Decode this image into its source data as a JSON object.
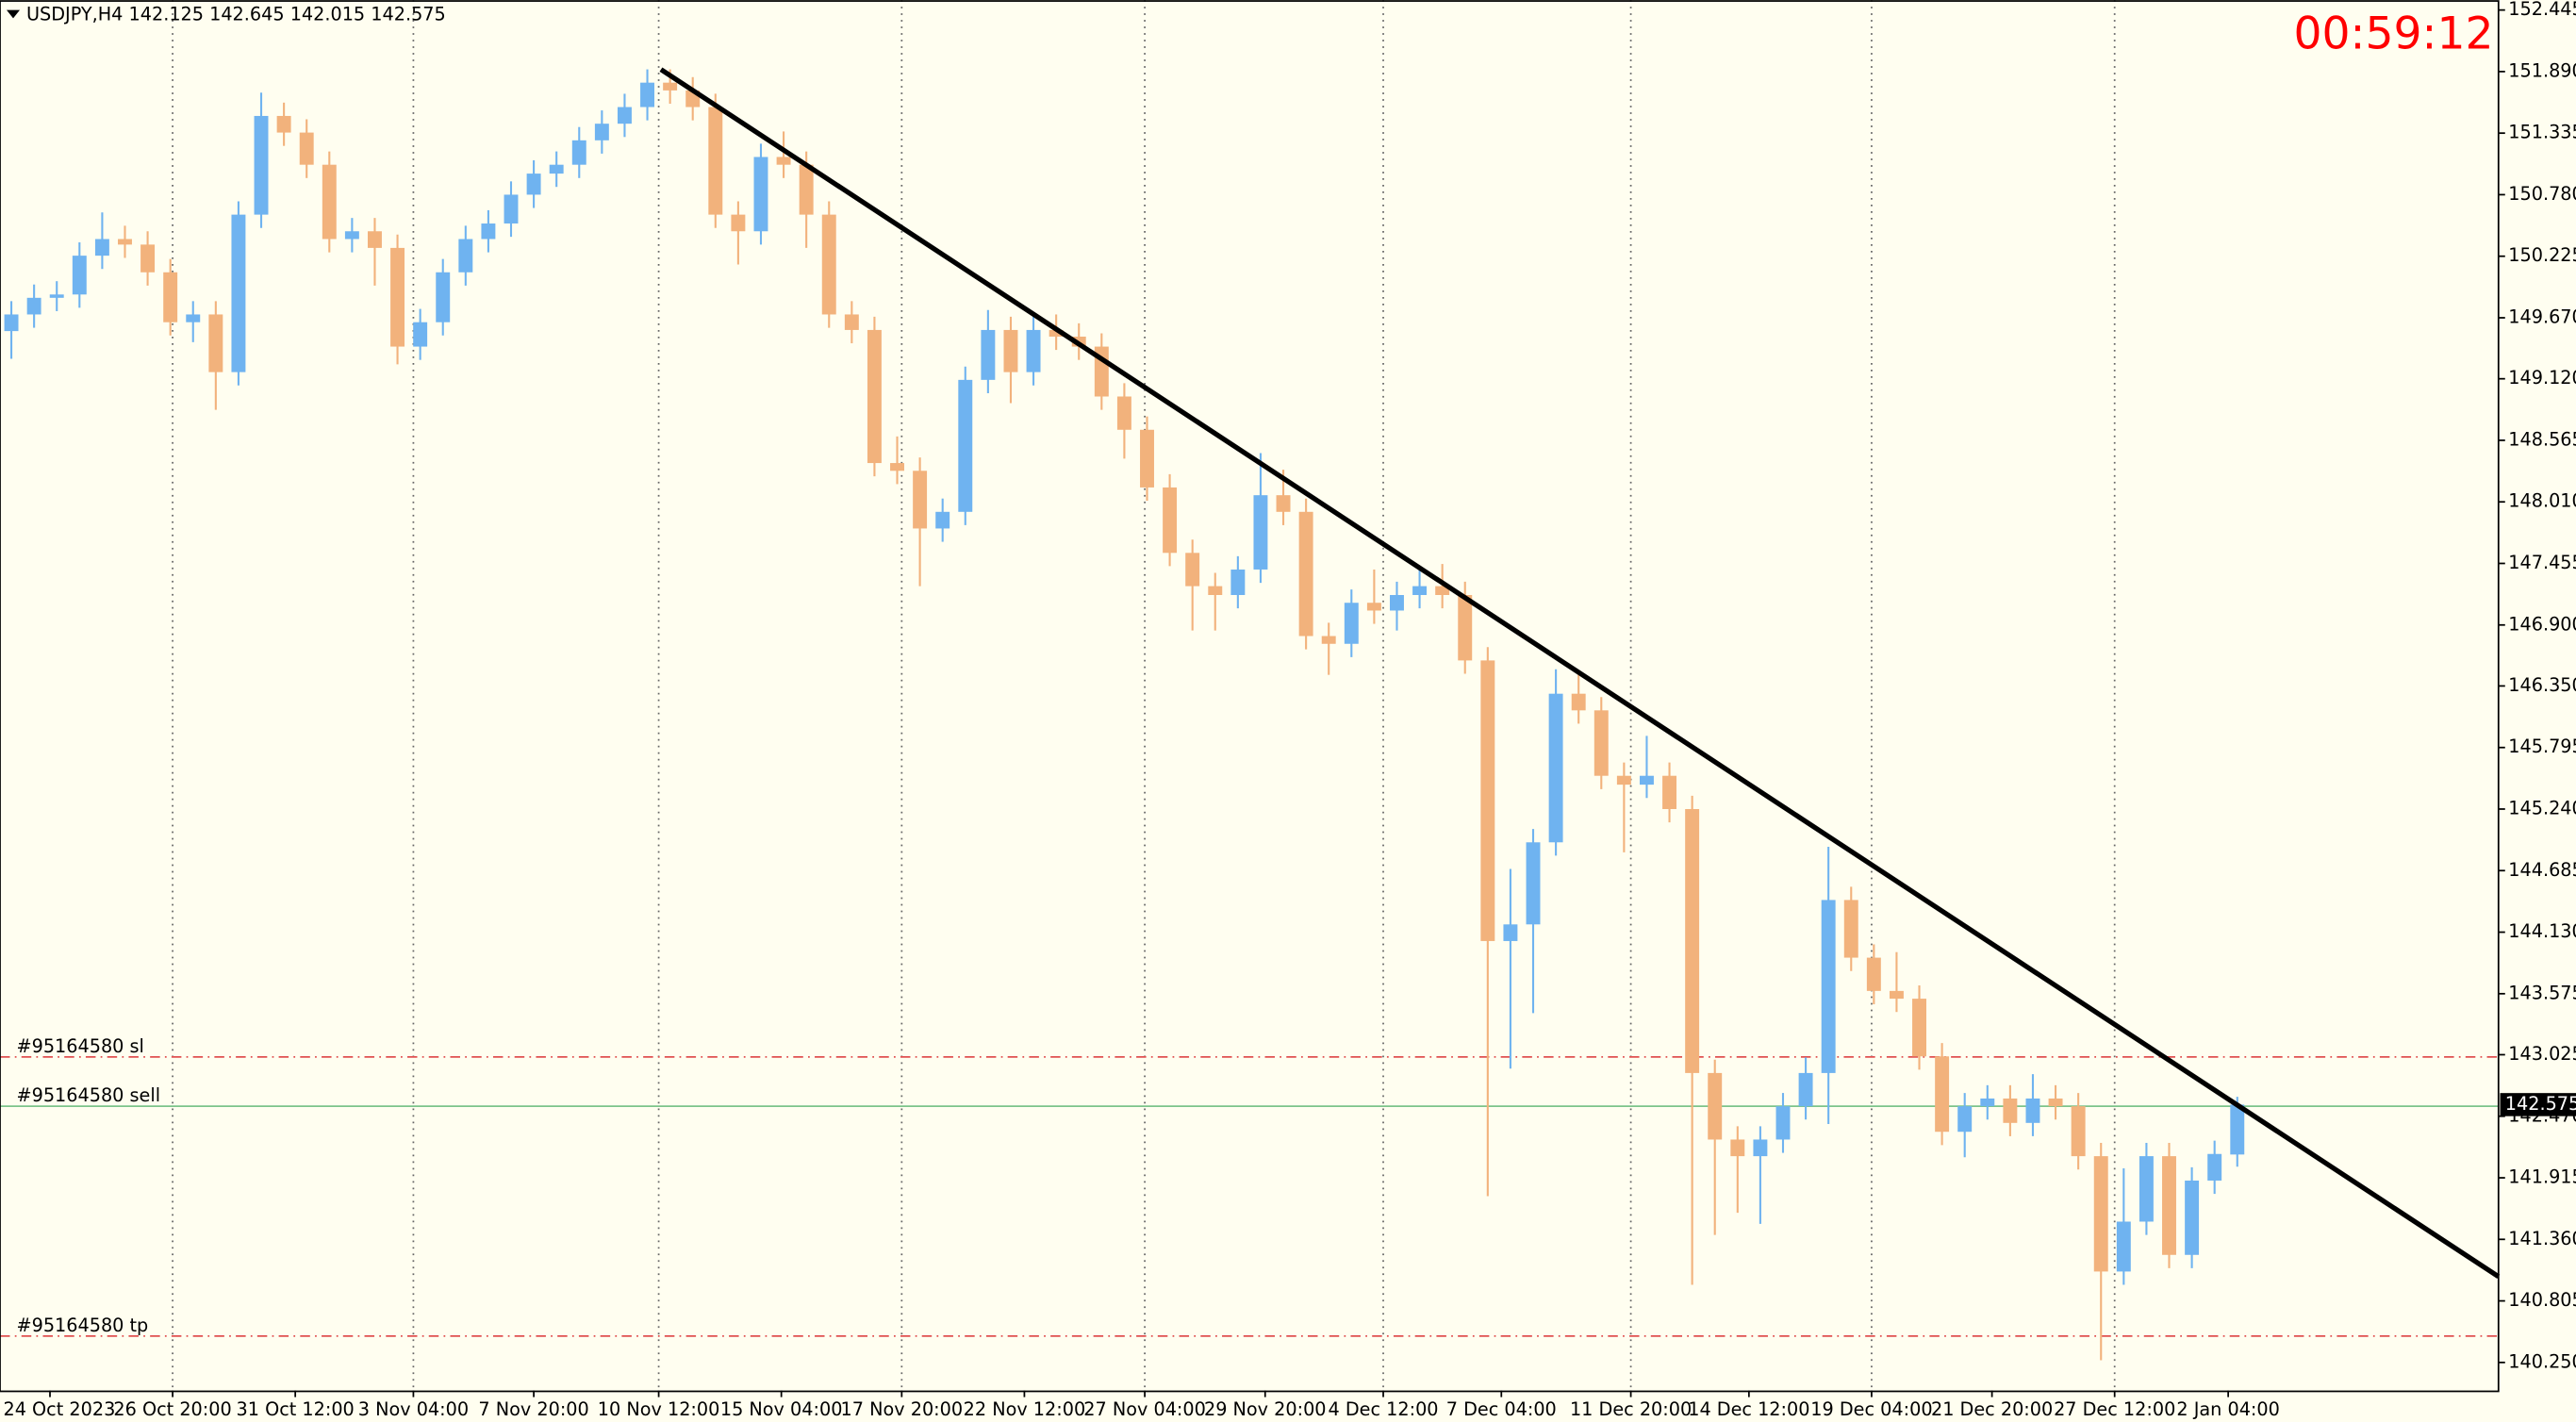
{
  "chart_data": {
    "type": "candlestick",
    "header": "USDJPY,H4  142.125 142.645 142.015 142.575",
    "timer": "00:59:12",
    "up_color": "#6fb3f0",
    "down_color": "#f2b27c",
    "x": [
      0,
      1,
      2,
      3,
      4,
      5,
      6,
      7,
      8,
      9,
      10,
      11,
      12,
      13,
      14,
      15,
      16,
      17,
      18,
      19,
      20,
      21,
      22,
      23,
      24,
      25,
      26,
      27,
      28,
      29,
      30,
      31,
      32,
      33,
      34,
      35,
      36,
      37,
      38,
      39,
      40,
      41,
      42,
      43,
      44,
      45,
      46,
      47,
      48,
      49,
      50,
      51,
      52,
      53,
      54,
      55,
      56,
      57,
      58,
      59,
      60,
      61,
      62,
      63,
      64,
      65,
      66,
      67,
      68,
      69,
      70,
      71,
      72,
      73,
      74,
      75,
      76,
      77,
      78,
      79,
      80,
      81,
      82,
      83,
      84,
      85,
      86,
      87,
      88,
      89,
      90,
      91,
      92,
      93,
      94,
      95,
      96,
      97,
      98
    ],
    "open": [
      149.55,
      149.7,
      149.85,
      149.88,
      150.23,
      150.38,
      150.33,
      150.08,
      149.63,
      149.7,
      149.18,
      150.6,
      151.49,
      151.34,
      151.05,
      150.38,
      150.45,
      150.3,
      149.41,
      149.63,
      150.08,
      150.38,
      150.52,
      150.78,
      150.97,
      151.05,
      151.27,
      151.42,
      151.57,
      151.79,
      151.72,
      151.57,
      150.6,
      150.45,
      151.12,
      151.05,
      150.6,
      149.7,
      149.56,
      148.36,
      148.29,
      147.77,
      147.92,
      149.11,
      149.56,
      149.18,
      149.56,
      149.5,
      149.41,
      148.96,
      148.66,
      148.14,
      147.55,
      147.25,
      147.17,
      147.4,
      148.07,
      147.92,
      146.8,
      146.73,
      147.1,
      147.03,
      147.17,
      147.25,
      147.17,
      146.58,
      144.05,
      144.2,
      144.94,
      146.28,
      146.13,
      145.54,
      145.46,
      145.54,
      145.24,
      142.86,
      142.26,
      142.11,
      142.26,
      142.56,
      142.86,
      144.42,
      143.9,
      143.6,
      143.53,
      143.01,
      142.33,
      142.56,
      142.63,
      142.41,
      142.63,
      142.56,
      142.11,
      141.07,
      141.52,
      142.11,
      141.22,
      141.89,
      142.125
    ],
    "high": [
      149.82,
      149.97,
      150.0,
      150.35,
      150.62,
      150.5,
      150.45,
      150.2,
      149.82,
      149.82,
      150.72,
      151.7,
      151.61,
      151.46,
      151.17,
      150.57,
      150.57,
      150.42,
      149.75,
      150.2,
      150.5,
      150.64,
      150.9,
      151.09,
      151.17,
      151.39,
      151.54,
      151.69,
      151.91,
      151.91,
      151.84,
      151.69,
      150.72,
      151.24,
      151.35,
      151.17,
      150.72,
      149.82,
      149.68,
      148.6,
      148.41,
      148.04,
      149.23,
      149.74,
      149.68,
      149.7,
      149.7,
      149.62,
      149.53,
      149.08,
      148.78,
      148.26,
      147.67,
      147.37,
      147.52,
      148.45,
      148.3,
      148.04,
      146.92,
      147.22,
      147.4,
      147.29,
      147.42,
      147.45,
      147.29,
      146.7,
      144.7,
      145.06,
      146.5,
      146.45,
      146.25,
      145.66,
      145.9,
      145.66,
      145.36,
      142.98,
      142.38,
      142.38,
      142.68,
      143.0,
      144.9,
      144.54,
      144.02,
      143.95,
      143.65,
      143.13,
      142.68,
      142.75,
      142.75,
      142.85,
      142.75,
      142.68,
      142.23,
      142.0,
      142.23,
      142.23,
      142.01,
      142.25,
      142.645
    ],
    "low": [
      149.3,
      149.58,
      149.73,
      149.76,
      150.11,
      150.21,
      149.96,
      149.51,
      149.45,
      148.84,
      149.06,
      150.48,
      151.22,
      150.93,
      150.26,
      150.26,
      149.96,
      149.25,
      149.29,
      149.51,
      149.96,
      150.26,
      150.4,
      150.66,
      150.85,
      150.93,
      151.15,
      151.3,
      151.45,
      151.6,
      151.45,
      150.48,
      150.15,
      150.33,
      150.93,
      150.3,
      149.58,
      149.44,
      148.24,
      148.17,
      147.25,
      147.65,
      147.8,
      148.99,
      148.9,
      149.06,
      149.38,
      149.29,
      148.84,
      148.4,
      148.02,
      147.43,
      146.85,
      146.85,
      147.05,
      147.28,
      147.8,
      146.68,
      146.45,
      146.61,
      146.91,
      146.85,
      147.05,
      147.05,
      146.46,
      141.75,
      142.9,
      143.4,
      144.82,
      146.01,
      145.42,
      144.85,
      145.34,
      145.12,
      140.95,
      141.4,
      141.6,
      141.5,
      142.14,
      142.44,
      142.4,
      143.78,
      143.48,
      143.41,
      142.89,
      142.21,
      142.1,
      142.44,
      142.29,
      142.29,
      142.44,
      141.99,
      140.27,
      140.95,
      141.4,
      141.1,
      141.1,
      141.77,
      142.015
    ],
    "close": [
      149.7,
      149.85,
      149.88,
      150.23,
      150.38,
      150.33,
      150.08,
      149.63,
      149.7,
      149.18,
      150.6,
      151.49,
      151.34,
      151.05,
      150.38,
      150.45,
      150.3,
      149.41,
      149.63,
      150.08,
      150.38,
      150.52,
      150.78,
      150.97,
      151.05,
      151.27,
      151.42,
      151.57,
      151.79,
      151.72,
      151.57,
      150.6,
      150.45,
      151.12,
      151.05,
      150.6,
      149.7,
      149.56,
      148.36,
      148.29,
      147.77,
      147.92,
      149.11,
      149.56,
      149.18,
      149.56,
      149.5,
      149.41,
      148.96,
      148.66,
      148.14,
      147.55,
      147.25,
      147.17,
      147.4,
      148.07,
      147.92,
      146.8,
      146.73,
      147.1,
      147.03,
      147.17,
      147.25,
      147.17,
      146.58,
      144.05,
      144.2,
      144.94,
      146.28,
      146.13,
      145.54,
      145.46,
      145.54,
      145.24,
      142.86,
      142.26,
      142.11,
      142.26,
      142.56,
      142.86,
      144.42,
      143.9,
      143.6,
      143.53,
      143.01,
      142.33,
      142.56,
      142.63,
      142.41,
      142.63,
      142.56,
      142.11,
      141.07,
      141.52,
      142.11,
      141.22,
      141.89,
      142.13,
      142.575
    ],
    "xlim": [
      -0.5,
      109.5
    ],
    "xticks": [
      {
        "value": 1.7,
        "label": "24 Oct 2023"
      },
      {
        "value": 7.1,
        "label": "26 Oct 20:00"
      },
      {
        "value": 12.5,
        "label": "31 Oct 12:00"
      },
      {
        "value": 17.7,
        "label": "3 Nov 04:00"
      },
      {
        "value": 23.0,
        "label": "7 Nov 20:00"
      },
      {
        "value": 28.5,
        "label": "10 Nov 12:00"
      },
      {
        "value": 33.9,
        "label": "15 Nov 04:00"
      },
      {
        "value": 39.2,
        "label": "17 Nov 20:00"
      },
      {
        "value": 44.6,
        "label": "22 Nov 12:00"
      },
      {
        "value": 49.9,
        "label": "27 Nov 04:00"
      },
      {
        "value": 55.2,
        "label": "29 Nov 20:00"
      },
      {
        "value": 60.4,
        "label": "4 Dec 12:00"
      },
      {
        "value": 65.6,
        "label": "7 Dec 04:00"
      },
      {
        "value": 71.3,
        "label": "11 Dec 20:00"
      },
      {
        "value": 76.5,
        "label": "14 Dec 12:00"
      },
      {
        "value": 81.9,
        "label": "19 Dec 04:00"
      },
      {
        "value": 87.2,
        "label": "21 Dec 20:00"
      },
      {
        "value": 92.6,
        "label": "27 Dec 12:00"
      },
      {
        "value": 97.6,
        "label": "2 Jan 04:00"
      }
    ],
    "ylim": [
      139.997,
      152.534
    ],
    "yticks": [
      152.445,
      {
        "value": 151.89,
        "label": "151.890"
      },
      151.335,
      {
        "value": 150.78,
        "label": "150.780"
      },
      150.225,
      {
        "value": 149.67,
        "label": "149.670"
      },
      {
        "value": 149.12,
        "label": "149.120"
      },
      148.565,
      {
        "value": 148.01,
        "label": "148.010"
      },
      147.455,
      {
        "value": 146.9,
        "label": "146.900"
      },
      {
        "value": 146.35,
        "label": "146.350"
      },
      145.795,
      {
        "value": 145.24,
        "label": "145.240"
      },
      144.685,
      {
        "value": 144.13,
        "label": "144.130"
      },
      143.575,
      143.025,
      {
        "value": 142.47,
        "label": "142.470"
      },
      141.915,
      {
        "value": 141.36,
        "label": "141.360"
      },
      140.805,
      {
        "value": 140.25,
        "label": "140.250"
      }
    ],
    "orders": [
      {
        "label": "#95164580 sl",
        "value": 143.005,
        "color": "#e05050"
      },
      {
        "label": "#95164580 sell",
        "value": 142.56,
        "color": "#7cc48a"
      },
      {
        "label": "#95164580 tp",
        "value": 140.488,
        "color": "#e05050"
      }
    ],
    "trendline": {
      "x": [
        28.6,
        109.5
      ],
      "y": [
        151.909,
        141.024
      ],
      "color": "#000000"
    }
  }
}
